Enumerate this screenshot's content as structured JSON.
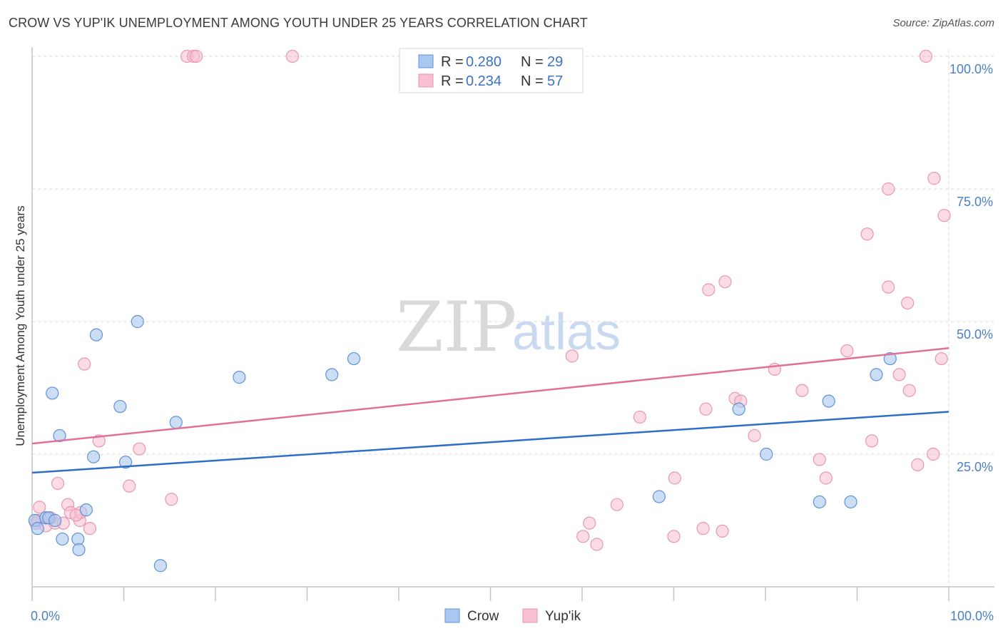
{
  "header": {
    "title": "CROW VS YUP'IK UNEMPLOYMENT AMONG YOUTH UNDER 25 YEARS CORRELATION CHART",
    "source": "Source: ZipAtlas.com"
  },
  "legend_top": {
    "rows": [
      {
        "r_label": "R =",
        "r_value": "0.280",
        "n_label": "N =",
        "n_value": "29"
      },
      {
        "r_label": "R =",
        "r_value": "0.234",
        "n_label": "N =",
        "n_value": "57"
      }
    ]
  },
  "watermark": {
    "zip": "ZIP",
    "atlas": "atlas"
  },
  "colors": {
    "crow_fill": "#a9c8ef",
    "crow_stroke": "#5e93d6",
    "crow_line": "#2f6fc7",
    "yupik_fill": "#f7bfd0",
    "yupik_stroke": "#e896b1",
    "yupik_line": "#e0709a",
    "grid": "#d8d8d8",
    "axis_text": "#4a7fc8"
  },
  "chart_data": {
    "type": "scatter",
    "title": "CROW VS YUP'IK UNEMPLOYMENT AMONG YOUTH UNDER 25 YEARS CORRELATION CHART",
    "xlabel": "",
    "ylabel": "Unemployment Among Youth under 25 years",
    "xlim": [
      0,
      100
    ],
    "ylim": [
      0,
      100
    ],
    "x_tick_labels": [
      "0.0%",
      "100.0%"
    ],
    "y_tick_labels": [
      "25.0%",
      "50.0%",
      "75.0%",
      "100.0%"
    ],
    "y_ticks": [
      25,
      50,
      75,
      100
    ],
    "grid": true,
    "legend_position": "bottom",
    "series": [
      {
        "name": "Crow",
        "points": [
          [
            0.3,
            12.5
          ],
          [
            0.6,
            11
          ],
          [
            1.5,
            13
          ],
          [
            1.8,
            13
          ],
          [
            2.2,
            36.5
          ],
          [
            2.5,
            12.5
          ],
          [
            3.0,
            28.5
          ],
          [
            3.3,
            9
          ],
          [
            5.0,
            9
          ],
          [
            5.1,
            7
          ],
          [
            5.9,
            14.5
          ],
          [
            6.7,
            24.5
          ],
          [
            7.0,
            47.5
          ],
          [
            9.6,
            34
          ],
          [
            10.2,
            23.5
          ],
          [
            11.5,
            50
          ],
          [
            14.0,
            4
          ],
          [
            15.7,
            31
          ],
          [
            22.6,
            39.5
          ],
          [
            32.7,
            40
          ],
          [
            35.1,
            43
          ],
          [
            68.4,
            17
          ],
          [
            77.1,
            33.5
          ],
          [
            80.1,
            25
          ],
          [
            85.9,
            16
          ],
          [
            86.9,
            35
          ],
          [
            89.3,
            16
          ],
          [
            92.1,
            40
          ],
          [
            93.6,
            43
          ]
        ],
        "trend": {
          "x": [
            0,
            100
          ],
          "y": [
            21.5,
            33.0
          ]
        }
      },
      {
        "name": "Yup'ik",
        "points": [
          [
            0.4,
            12
          ],
          [
            0.6,
            12.5
          ],
          [
            0.8,
            15
          ],
          [
            1.5,
            11.5
          ],
          [
            2.5,
            12
          ],
          [
            2.8,
            19.5
          ],
          [
            3.4,
            12
          ],
          [
            3.9,
            15.5
          ],
          [
            4.2,
            14
          ],
          [
            5.2,
            12.5
          ],
          [
            5.3,
            14
          ],
          [
            5.7,
            42
          ],
          [
            6.3,
            11
          ],
          [
            7.3,
            27.5
          ],
          [
            10.6,
            19
          ],
          [
            11.7,
            26
          ],
          [
            15.2,
            16.5
          ],
          [
            16.9,
            100
          ],
          [
            17.6,
            100
          ],
          [
            17.9,
            100
          ],
          [
            28.4,
            100
          ],
          [
            58.9,
            43.5
          ],
          [
            60.1,
            9.5
          ],
          [
            60.8,
            12
          ],
          [
            61.6,
            8
          ],
          [
            63.8,
            15.5
          ],
          [
            66.3,
            32
          ],
          [
            70.0,
            9.5
          ],
          [
            70.1,
            20.5
          ],
          [
            73.2,
            11
          ],
          [
            73.5,
            33.5
          ],
          [
            73.8,
            56
          ],
          [
            75.3,
            10.5
          ],
          [
            75.6,
            57.5
          ],
          [
            76.7,
            35.5
          ],
          [
            77.3,
            35
          ],
          [
            78.8,
            28.5
          ],
          [
            81.0,
            41
          ],
          [
            84.0,
            37
          ],
          [
            85.9,
            24
          ],
          [
            86.6,
            20.5
          ],
          [
            88.9,
            44.5
          ],
          [
            91.1,
            66.5
          ],
          [
            91.6,
            27.5
          ],
          [
            93.4,
            75
          ],
          [
            93.4,
            56.5
          ],
          [
            94.6,
            40
          ],
          [
            95.5,
            53.5
          ],
          [
            95.7,
            37
          ],
          [
            96.6,
            23
          ],
          [
            97.5,
            100
          ],
          [
            98.3,
            25
          ],
          [
            98.4,
            77
          ],
          [
            99.2,
            43
          ],
          [
            99.5,
            70
          ],
          [
            2.0,
            13
          ],
          [
            4.8,
            13.5
          ]
        ],
        "trend": {
          "x": [
            0,
            100
          ],
          "y": [
            27.0,
            45.0
          ]
        }
      }
    ]
  },
  "legend_bottom": {
    "items": [
      {
        "label": "Crow"
      },
      {
        "label": "Yup'ik"
      }
    ]
  }
}
